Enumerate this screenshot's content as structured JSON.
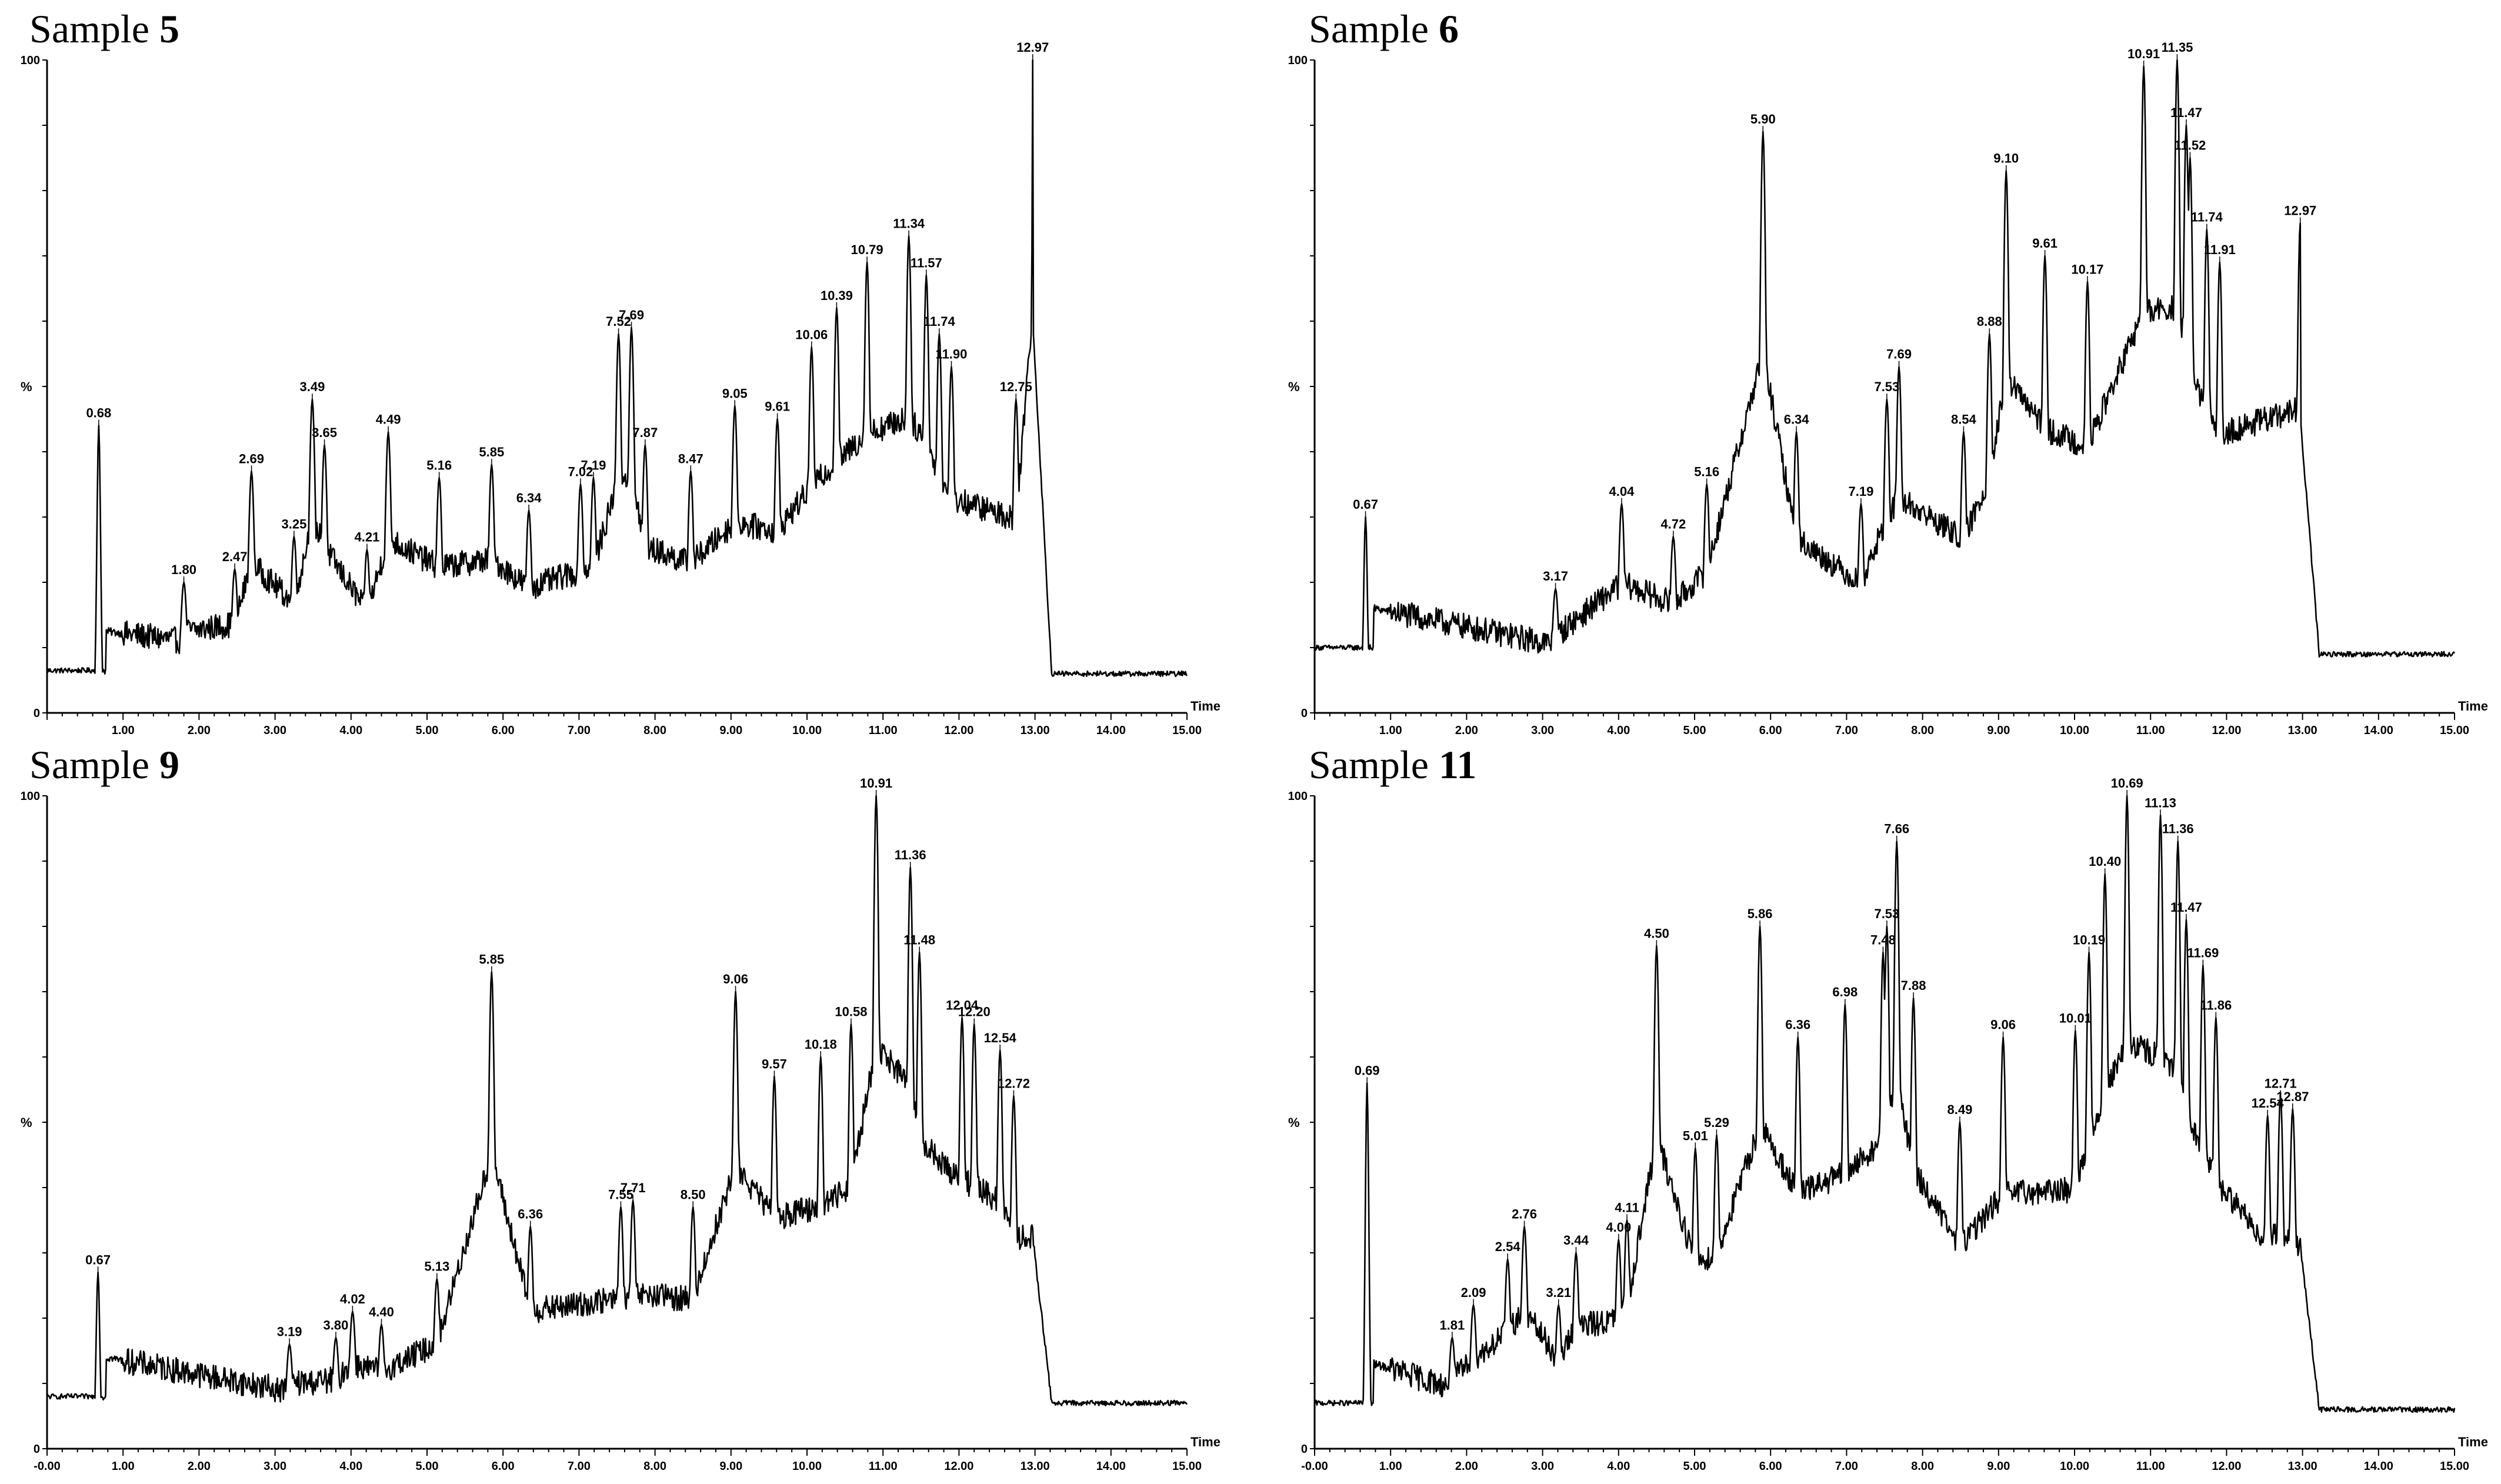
{
  "chart_data": [
    {
      "type": "line",
      "panel": "top-left",
      "title_prefix": "Sample ",
      "title_number": "5",
      "xlabel": "Time",
      "ylabel": "%",
      "xlim": [
        0,
        15
      ],
      "ylim": [
        0,
        100
      ],
      "x_ticks": [
        "1.00",
        "2.00",
        "3.00",
        "4.00",
        "5.00",
        "6.00",
        "7.00",
        "8.00",
        "9.00",
        "10.00",
        "11.00",
        "12.00",
        "13.00",
        "14.00",
        "15.00"
      ],
      "y_ticks": [
        "0",
        "100"
      ],
      "peaks": [
        {
          "x": 0.68,
          "y": 44,
          "label": "0.68"
        },
        {
          "x": 1.8,
          "y": 20,
          "label": "1.80"
        },
        {
          "x": 2.47,
          "y": 22,
          "label": "2.47"
        },
        {
          "x": 2.69,
          "y": 37,
          "label": "2.69"
        },
        {
          "x": 3.25,
          "y": 27,
          "label": "3.25"
        },
        {
          "x": 3.49,
          "y": 48,
          "label": "3.49"
        },
        {
          "x": 3.65,
          "y": 41,
          "label": "3.65"
        },
        {
          "x": 4.21,
          "y": 25,
          "label": "4.21"
        },
        {
          "x": 4.49,
          "y": 43,
          "label": "4.49"
        },
        {
          "x": 5.16,
          "y": 36,
          "label": "5.16"
        },
        {
          "x": 5.85,
          "y": 38,
          "label": "5.85"
        },
        {
          "x": 6.34,
          "y": 31,
          "label": "6.34"
        },
        {
          "x": 7.02,
          "y": 35,
          "label": "7.02"
        },
        {
          "x": 7.19,
          "y": 36,
          "label": "7.19"
        },
        {
          "x": 7.52,
          "y": 58,
          "label": "7.52"
        },
        {
          "x": 7.69,
          "y": 59,
          "label": "7.69"
        },
        {
          "x": 7.87,
          "y": 41,
          "label": "7.87"
        },
        {
          "x": 8.47,
          "y": 37,
          "label": "8.47"
        },
        {
          "x": 9.05,
          "y": 47,
          "label": "9.05"
        },
        {
          "x": 9.61,
          "y": 45,
          "label": "9.61"
        },
        {
          "x": 10.06,
          "y": 56,
          "label": "10.06"
        },
        {
          "x": 10.39,
          "y": 62,
          "label": "10.39"
        },
        {
          "x": 10.79,
          "y": 69,
          "label": "10.79"
        },
        {
          "x": 11.34,
          "y": 73,
          "label": "11.34"
        },
        {
          "x": 11.57,
          "y": 67,
          "label": "11.57"
        },
        {
          "x": 11.74,
          "y": 58,
          "label": "11.74"
        },
        {
          "x": 11.9,
          "y": 53,
          "label": "11.90"
        },
        {
          "x": 12.75,
          "y": 48,
          "label": "12.75"
        },
        {
          "x": 12.97,
          "y": 100,
          "label": "12.97"
        }
      ],
      "baseline_start": 6.5,
      "baseline_end": 6.0,
      "plateau_end": 12.97
    },
    {
      "type": "line",
      "panel": "top-right",
      "title_prefix": "Sample ",
      "title_number": "6",
      "xlabel": "Time",
      "ylabel": "%",
      "xlim": [
        0,
        15
      ],
      "ylim": [
        0,
        100
      ],
      "x_ticks": [
        "1.00",
        "2.00",
        "3.00",
        "4.00",
        "5.00",
        "6.00",
        "7.00",
        "8.00",
        "9.00",
        "10.00",
        "11.00",
        "12.00",
        "13.00",
        "14.00",
        "15.00"
      ],
      "y_ticks": [
        "0",
        "100"
      ],
      "peaks": [
        {
          "x": 0.67,
          "y": 30,
          "label": "0.67"
        },
        {
          "x": 3.17,
          "y": 19,
          "label": "3.17"
        },
        {
          "x": 4.04,
          "y": 32,
          "label": "4.04"
        },
        {
          "x": 4.72,
          "y": 27,
          "label": "4.72"
        },
        {
          "x": 5.16,
          "y": 35,
          "label": "5.16"
        },
        {
          "x": 5.9,
          "y": 89,
          "label": "5.90"
        },
        {
          "x": 6.34,
          "y": 43,
          "label": "6.34"
        },
        {
          "x": 7.19,
          "y": 32,
          "label": "7.19"
        },
        {
          "x": 7.53,
          "y": 48,
          "label": "7.53"
        },
        {
          "x": 7.69,
          "y": 53,
          "label": "7.69"
        },
        {
          "x": 8.54,
          "y": 43,
          "label": "8.54"
        },
        {
          "x": 8.88,
          "y": 58,
          "label": "8.88"
        },
        {
          "x": 9.1,
          "y": 83,
          "label": "9.10"
        },
        {
          "x": 9.61,
          "y": 70,
          "label": "9.61"
        },
        {
          "x": 10.17,
          "y": 66,
          "label": "10.17"
        },
        {
          "x": 10.91,
          "y": 99,
          "label": "10.91"
        },
        {
          "x": 11.35,
          "y": 100,
          "label": "11.35"
        },
        {
          "x": 11.47,
          "y": 90,
          "label": "11.47"
        },
        {
          "x": 11.52,
          "y": 85,
          "label": "11.52"
        },
        {
          "x": 11.74,
          "y": 74,
          "label": "11.74"
        },
        {
          "x": 11.91,
          "y": 69,
          "label": "11.91"
        },
        {
          "x": 12.97,
          "y": 75,
          "label": "12.97"
        }
      ],
      "baseline_start": 10.0,
      "baseline_end": 9.0,
      "plateau_end": 12.97
    },
    {
      "type": "line",
      "panel": "bottom-left",
      "title_prefix": "Sample ",
      "title_number": "9",
      "xlabel": "Time",
      "ylabel": "%",
      "xlim": [
        0,
        15
      ],
      "ylim": [
        0,
        100
      ],
      "x_ticks": [
        "-0.00",
        "1.00",
        "2.00",
        "3.00",
        "4.00",
        "5.00",
        "6.00",
        "7.00",
        "8.00",
        "9.00",
        "10.00",
        "11.00",
        "12.00",
        "13.00",
        "14.00",
        "15.00"
      ],
      "y_ticks": [
        "0",
        "100"
      ],
      "peaks": [
        {
          "x": 0.67,
          "y": 27,
          "label": "0.67"
        },
        {
          "x": 3.19,
          "y": 16,
          "label": "3.19"
        },
        {
          "x": 3.8,
          "y": 17,
          "label": "3.80"
        },
        {
          "x": 4.02,
          "y": 21,
          "label": "4.02"
        },
        {
          "x": 4.4,
          "y": 19,
          "label": "4.40"
        },
        {
          "x": 5.13,
          "y": 26,
          "label": "5.13"
        },
        {
          "x": 5.85,
          "y": 73,
          "label": "5.85"
        },
        {
          "x": 6.36,
          "y": 34,
          "label": "6.36"
        },
        {
          "x": 7.55,
          "y": 37,
          "label": "7.55"
        },
        {
          "x": 7.71,
          "y": 38,
          "label": "7.71"
        },
        {
          "x": 8.5,
          "y": 37,
          "label": "8.50"
        },
        {
          "x": 9.06,
          "y": 70,
          "label": "9.06"
        },
        {
          "x": 9.57,
          "y": 57,
          "label": "9.57"
        },
        {
          "x": 10.18,
          "y": 60,
          "label": "10.18"
        },
        {
          "x": 10.58,
          "y": 65,
          "label": "10.58"
        },
        {
          "x": 10.91,
          "y": 100,
          "label": "10.91"
        },
        {
          "x": 11.36,
          "y": 89,
          "label": "11.36"
        },
        {
          "x": 11.48,
          "y": 76,
          "label": "11.48"
        },
        {
          "x": 12.04,
          "y": 66,
          "label": "12.04"
        },
        {
          "x": 12.2,
          "y": 65,
          "label": "12.20"
        },
        {
          "x": 12.54,
          "y": 61,
          "label": "12.54"
        },
        {
          "x": 12.72,
          "y": 54,
          "label": "12.72"
        }
      ],
      "baseline_start": 8.0,
      "baseline_end": 7.0,
      "plateau_end": 12.97
    },
    {
      "type": "line",
      "panel": "bottom-right",
      "title_prefix": "Sample ",
      "title_number": "11",
      "xlabel": "Time",
      "ylabel": "%",
      "xlim": [
        0,
        15
      ],
      "ylim": [
        0,
        100
      ],
      "x_ticks": [
        "-0.00",
        "1.00",
        "2.00",
        "3.00",
        "4.00",
        "5.00",
        "6.00",
        "7.00",
        "8.00",
        "9.00",
        "10.00",
        "11.00",
        "12.00",
        "13.00",
        "14.00",
        "15.00"
      ],
      "y_ticks": [
        "0",
        "100"
      ],
      "peaks": [
        {
          "x": 0.69,
          "y": 56,
          "label": "0.69"
        },
        {
          "x": 1.81,
          "y": 17,
          "label": "1.81"
        },
        {
          "x": 2.09,
          "y": 22,
          "label": "2.09"
        },
        {
          "x": 2.54,
          "y": 29,
          "label": "2.54"
        },
        {
          "x": 2.76,
          "y": 34,
          "label": "2.76"
        },
        {
          "x": 3.21,
          "y": 22,
          "label": "3.21"
        },
        {
          "x": 3.44,
          "y": 30,
          "label": "3.44"
        },
        {
          "x": 4.0,
          "y": 32,
          "label": "4.00"
        },
        {
          "x": 4.11,
          "y": 35,
          "label": "4.11"
        },
        {
          "x": 4.5,
          "y": 77,
          "label": "4.50"
        },
        {
          "x": 5.01,
          "y": 46,
          "label": "5.01"
        },
        {
          "x": 5.29,
          "y": 48,
          "label": "5.29"
        },
        {
          "x": 5.86,
          "y": 80,
          "label": "5.86"
        },
        {
          "x": 6.36,
          "y": 63,
          "label": "6.36"
        },
        {
          "x": 6.98,
          "y": 68,
          "label": "6.98"
        },
        {
          "x": 7.48,
          "y": 76,
          "label": "7.48"
        },
        {
          "x": 7.53,
          "y": 80,
          "label": "7.53"
        },
        {
          "x": 7.66,
          "y": 93,
          "label": "7.66"
        },
        {
          "x": 7.88,
          "y": 69,
          "label": "7.88"
        },
        {
          "x": 8.49,
          "y": 50,
          "label": "8.49"
        },
        {
          "x": 9.06,
          "y": 63,
          "label": "9.06"
        },
        {
          "x": 10.01,
          "y": 64,
          "label": "10.01"
        },
        {
          "x": 10.19,
          "y": 76,
          "label": "10.19"
        },
        {
          "x": 10.4,
          "y": 88,
          "label": "10.40"
        },
        {
          "x": 10.69,
          "y": 100,
          "label": "10.69"
        },
        {
          "x": 11.13,
          "y": 97,
          "label": "11.13"
        },
        {
          "x": 11.36,
          "y": 93,
          "label": "11.36"
        },
        {
          "x": 11.47,
          "y": 81,
          "label": "11.47"
        },
        {
          "x": 11.69,
          "y": 74,
          "label": "11.69"
        },
        {
          "x": 11.86,
          "y": 66,
          "label": "11.86"
        },
        {
          "x": 12.54,
          "y": 51,
          "label": "12.54"
        },
        {
          "x": 12.71,
          "y": 54,
          "label": "12.71"
        },
        {
          "x": 12.87,
          "y": 52,
          "label": "12.87"
        }
      ],
      "baseline_start": 7.0,
      "baseline_end": 6.0,
      "plateau_end": 12.97
    }
  ]
}
